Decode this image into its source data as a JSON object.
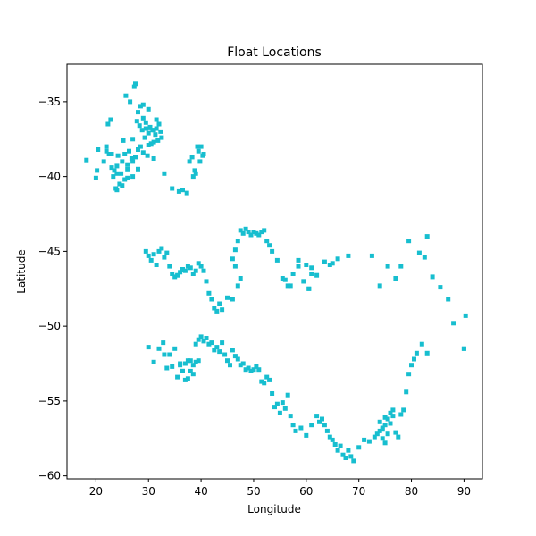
{
  "chart_data": {
    "type": "scatter",
    "title": "Float Locations",
    "xlabel": "Longitude",
    "ylabel": "Latitude",
    "xlim": [
      14.5,
      93.5
    ],
    "ylim": [
      -60.2,
      -32.5
    ],
    "xticks": [
      20,
      30,
      40,
      50,
      60,
      70,
      80,
      90
    ],
    "yticks": [
      -35,
      -40,
      -45,
      -50,
      -55,
      -60
    ],
    "grid": false,
    "legend": "none",
    "marker": "square",
    "color": "#17becf",
    "x": [
      18.2,
      20.0,
      20.2,
      20.4,
      21.5,
      22.0,
      22.3,
      22.5,
      22.8,
      23.0,
      23.3,
      23.5,
      23.8,
      24.0,
      24.2,
      24.5,
      24.8,
      25.0,
      25.2,
      25.5,
      25.7,
      26.0,
      26.3,
      26.5,
      26.8,
      27.0,
      27.3,
      27.5,
      27.8,
      28.0,
      28.3,
      28.5,
      28.8,
      29.0,
      29.3,
      29.5,
      29.8,
      30.0,
      30.3,
      30.5,
      30.8,
      31.0,
      31.3,
      31.5,
      31.8,
      32.0,
      32.3,
      32.5,
      22.0,
      23.0,
      24.0,
      25.0,
      26.0,
      27.0,
      28.0,
      29.0,
      30.0,
      31.0,
      24.0,
      25.5,
      27.0,
      28.5,
      30.0,
      31.5,
      33.0,
      26.0,
      27.5,
      29.0,
      28.0,
      29.5,
      31.0,
      34.5,
      35.8,
      36.5,
      37.3,
      37.8,
      38.3,
      38.5,
      38.8,
      39.0,
      39.3,
      39.5,
      39.8,
      40.0,
      40.3,
      40.5,
      29.5,
      30.0,
      30.5,
      31.0,
      31.5,
      32.0,
      32.5,
      33.0,
      33.5,
      34.0,
      34.5,
      35.0,
      35.5,
      36.0,
      36.5,
      37.0,
      37.5,
      38.0,
      38.5,
      39.0,
      39.5,
      40.0,
      40.5,
      41.0,
      41.5,
      42.0,
      42.5,
      43.0,
      43.5,
      44.0,
      45.0,
      46.0,
      47.0,
      47.5,
      46.5,
      46.0,
      46.5,
      47.0,
      47.5,
      48.0,
      48.5,
      49.0,
      49.5,
      50.0,
      50.5,
      51.0,
      51.5,
      52.0,
      52.5,
      53.0,
      53.5,
      54.5,
      55.5,
      56.5,
      57.5,
      58.5,
      59.5,
      60.5,
      61.0,
      62.0,
      63.5,
      64.5,
      65.0,
      66.0,
      68.0,
      72.5,
      74.0,
      75.5,
      77.0,
      78.0,
      79.5,
      81.5,
      82.5,
      83.0,
      84.0,
      85.5,
      87.0,
      88.0,
      90.0,
      90.3,
      56.0,
      57.0,
      60.0,
      61.0,
      58.5,
      59.5,
      60.5,
      30.0,
      31.0,
      32.0,
      32.8,
      33.5,
      34.0,
      35.0,
      35.5,
      36.0,
      36.5,
      37.0,
      37.5,
      38.0,
      38.5,
      39.0,
      39.5,
      40.0,
      40.5,
      41.0,
      41.5,
      42.0,
      42.5,
      43.0,
      43.5,
      44.0,
      44.5,
      45.0,
      45.5,
      46.0,
      46.5,
      47.0,
      47.5,
      48.0,
      48.5,
      49.0,
      49.5,
      50.0,
      50.5,
      51.0,
      51.5,
      52.0,
      52.5,
      53.0,
      53.5,
      54.0,
      54.5,
      55.0,
      55.5,
      56.0,
      56.5,
      57.0,
      57.5,
      58.0,
      59.0,
      60.0,
      61.0,
      62.0,
      62.5,
      63.0,
      63.5,
      64.0,
      64.5,
      65.0,
      65.5,
      66.0,
      66.5,
      67.0,
      67.5,
      68.0,
      68.5,
      69.0,
      70.0,
      71.0,
      72.0,
      73.0,
      73.5,
      74.0,
      74.5,
      75.0,
      75.5,
      76.0,
      76.5,
      77.0,
      77.5,
      78.0,
      78.5,
      79.0,
      79.5,
      80.0,
      80.5,
      81.0,
      82.0,
      83.0,
      90.0,
      33.0,
      34.5,
      36.0,
      37.0,
      38.0,
      39.0,
      39.5,
      38.5,
      37.5,
      36.5,
      74.5,
      75.0,
      75.5,
      76.0,
      76.5,
      74.0,
      74.5,
      75.0
    ],
    "y": [
      -38.9,
      -40.1,
      -39.6,
      -38.2,
      -39.0,
      -38.0,
      -36.5,
      -38.5,
      -36.2,
      -39.4,
      -40.0,
      -39.6,
      -40.8,
      -39.3,
      -38.6,
      -40.5,
      -39.8,
      -39.0,
      -37.6,
      -38.5,
      -34.6,
      -39.5,
      -38.3,
      -35.0,
      -38.8,
      -37.5,
      -34.0,
      -33.8,
      -36.3,
      -38.2,
      -36.6,
      -35.3,
      -36.9,
      -35.2,
      -37.4,
      -36.4,
      -38.6,
      -37.1,
      -36.7,
      -37.8,
      -36.9,
      -37.7,
      -37.2,
      -36.8,
      -37.6,
      -36.5,
      -37.0,
      -37.4,
      -38.3,
      -38.5,
      -39.8,
      -40.6,
      -39.2,
      -40.0,
      -39.5,
      -38.4,
      -37.9,
      -36.9,
      -40.9,
      -40.2,
      -39.0,
      -38.0,
      -35.5,
      -36.2,
      -39.8,
      -40.1,
      -38.7,
      -36.1,
      -35.7,
      -36.8,
      -38.8,
      -40.8,
      -41.0,
      -40.9,
      -41.1,
      -39.0,
      -38.7,
      -40.0,
      -39.6,
      -39.8,
      -38.0,
      -38.3,
      -39.0,
      -38.0,
      -38.6,
      -38.5,
      -45.0,
      -45.3,
      -45.6,
      -45.2,
      -45.9,
      -45.0,
      -44.8,
      -45.4,
      -45.1,
      -46.0,
      -46.5,
      -46.7,
      -46.6,
      -46.4,
      -46.2,
      -46.3,
      -46.0,
      -46.1,
      -46.5,
      -46.3,
      -45.8,
      -46.0,
      -46.3,
      -47.0,
      -47.8,
      -48.2,
      -48.8,
      -49.0,
      -48.5,
      -48.9,
      -48.1,
      -48.2,
      -47.3,
      -46.8,
      -46.0,
      -45.5,
      -44.9,
      -44.3,
      -43.6,
      -43.8,
      -43.5,
      -43.7,
      -43.9,
      -43.7,
      -43.8,
      -43.9,
      -43.7,
      -43.6,
      -44.3,
      -44.6,
      -45.0,
      -45.6,
      -46.8,
      -47.3,
      -46.5,
      -46.0,
      -47.0,
      -47.5,
      -46.5,
      -46.6,
      -45.7,
      -45.9,
      -45.8,
      -45.5,
      -45.3,
      -45.3,
      -47.3,
      -46.0,
      -46.8,
      -46.0,
      -44.3,
      -45.1,
      -45.4,
      -44.0,
      -46.7,
      -47.4,
      -48.2,
      -49.8,
      -51.5,
      -49.3,
      -46.9,
      -47.3,
      -45.9,
      -46.1,
      -45.6,
      -47.0,
      -47.5,
      -51.4,
      -52.4,
      -51.5,
      -51.1,
      -52.8,
      -51.9,
      -51.5,
      -53.4,
      -52.5,
      -53.0,
      -53.6,
      -52.3,
      -53.0,
      -52.6,
      -51.2,
      -50.9,
      -50.7,
      -51.0,
      -50.8,
      -51.2,
      -51.1,
      -51.6,
      -51.4,
      -51.7,
      -51.1,
      -51.9,
      -52.3,
      -52.6,
      -51.6,
      -52.0,
      -52.2,
      -52.6,
      -52.5,
      -52.9,
      -52.8,
      -53.0,
      -52.9,
      -52.7,
      -52.9,
      -53.7,
      -53.8,
      -53.4,
      -53.6,
      -54.5,
      -55.4,
      -55.2,
      -55.8,
      -55.1,
      -55.5,
      -54.6,
      -56.0,
      -56.6,
      -57.0,
      -56.8,
      -57.3,
      -56.6,
      -56.0,
      -56.4,
      -56.2,
      -56.6,
      -57.0,
      -57.4,
      -57.6,
      -57.9,
      -58.3,
      -58.0,
      -58.6,
      -58.8,
      -58.3,
      -58.7,
      -59.0,
      -58.1,
      -57.6,
      -57.7,
      -57.4,
      -57.2,
      -57.0,
      -56.8,
      -56.6,
      -56.2,
      -55.8,
      -56.0,
      -57.1,
      -57.4,
      -55.9,
      -55.6,
      -54.4,
      -53.2,
      -52.6,
      -52.2,
      -51.8,
      -51.2,
      -51.8,
      -51.5,
      -51.9,
      -52.7,
      -52.6,
      -52.5,
      -52.3,
      -52.4,
      -52.3,
      -53.2,
      -53.5,
      -53.0,
      -57.5,
      -57.8,
      -57.2,
      -56.5,
      -55.6,
      -56.4,
      -56.9,
      -56.1
    ]
  }
}
